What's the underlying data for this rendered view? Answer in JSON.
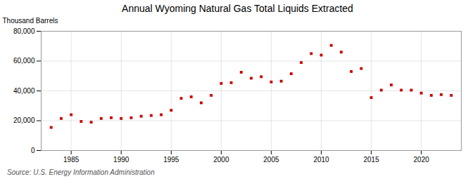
{
  "chart_data": {
    "type": "scatter",
    "title": "Annual Wyoming Natural Gas Total Liquids Extracted",
    "ylabel": "Thousand Barrels",
    "source": "Source: U.S. Energy Information Administration",
    "x": [
      1983,
      1984,
      1985,
      1986,
      1987,
      1988,
      1989,
      1990,
      1991,
      1992,
      1993,
      1994,
      1995,
      1996,
      1997,
      1998,
      1999,
      2000,
      2001,
      2002,
      2003,
      2004,
      2005,
      2006,
      2007,
      2008,
      2009,
      2010,
      2011,
      2012,
      2013,
      2014,
      2015,
      2016,
      2017,
      2018,
      2019,
      2020,
      2021,
      2022,
      2023
    ],
    "values": [
      15500,
      21500,
      24000,
      19500,
      19000,
      21500,
      22000,
      21500,
      22000,
      23000,
      23500,
      24000,
      27000,
      35000,
      36000,
      32000,
      37000,
      45000,
      45500,
      52500,
      48500,
      49500,
      46000,
      46500,
      51500,
      59000,
      65000,
      64000,
      70500,
      66000,
      53000,
      55000,
      35500,
      40500,
      44000,
      40500,
      40500,
      38500,
      37000,
      37500,
      37000
    ],
    "color": "#cc0000",
    "marker": "square",
    "xlim": [
      1982,
      2024
    ],
    "xticks": [
      1985,
      1990,
      1995,
      2000,
      2005,
      2010,
      2015,
      2020
    ],
    "ylim": [
      0,
      80000
    ],
    "yticks": [
      0,
      {
        "value": 20000,
        "label": "20,000"
      },
      {
        "value": 40000,
        "label": "40,000"
      },
      {
        "value": 60000,
        "label": "60,000"
      },
      {
        "value": 80000,
        "label": "80,000"
      }
    ],
    "grid": true
  }
}
